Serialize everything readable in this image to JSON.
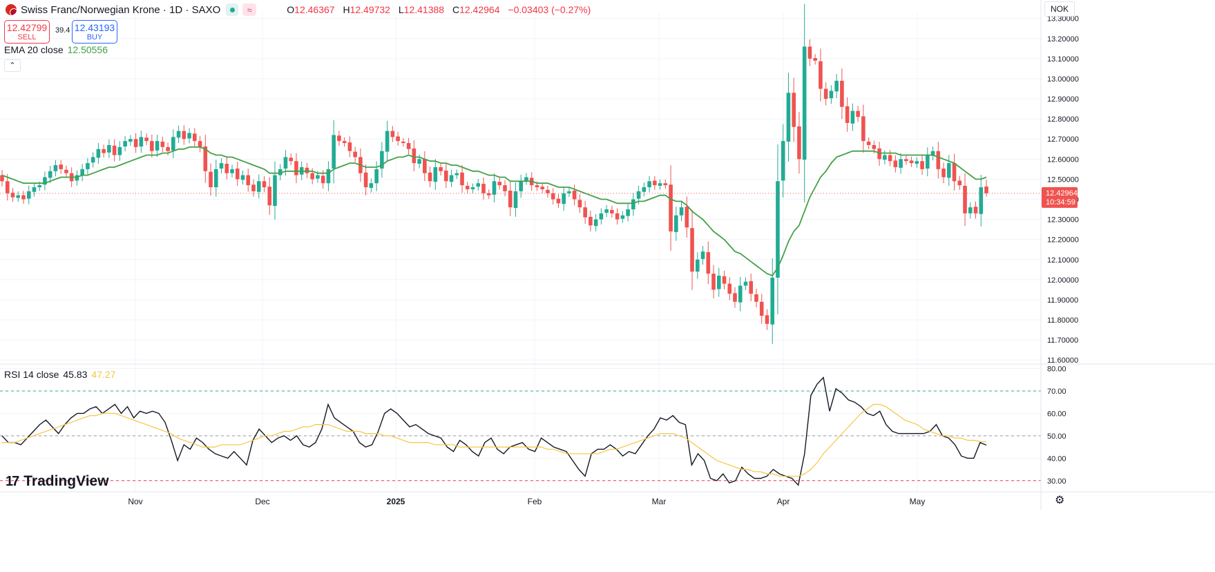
{
  "header": {
    "title": "Swiss Franc/Norwegian Krone · 1D · SAXO",
    "ohlc": [
      {
        "label": "O",
        "value": "12.46367"
      },
      {
        "label": "H",
        "value": "12.49732"
      },
      {
        "label": "L",
        "value": "12.41388"
      },
      {
        "label": "C",
        "value": "12.42964"
      },
      {
        "label": "",
        "value": "−0.03403 (−0.27%)"
      }
    ],
    "wave_icon": "≈"
  },
  "trade": {
    "sell_price": "12.42799",
    "sell_label": "SELL",
    "spread": "39.4",
    "buy_price": "12.43193",
    "buy_label": "BUY"
  },
  "indicators": {
    "ema_label": "EMA 20 close",
    "ema_value": "12.50556",
    "rsi_label": "RSI 14 close",
    "rsi_value": "45.83",
    "rsi_ma_value": "47.27"
  },
  "currency": "NOK",
  "current_price": {
    "price": "12.42964",
    "countdown": "10:34:59"
  },
  "brand": "TradingView",
  "colors": {
    "up": "#22ab94",
    "down": "#ef5350",
    "ema": "#43a047",
    "rsi": "#131722",
    "rsi_ma": "#f5c542",
    "grid": "#f0f3fa"
  },
  "chart_data": [
    {
      "type": "candlestick",
      "title": "Swiss Franc/Norwegian Krone · 1D · SAXO",
      "x_tick_labels": [
        "Nov",
        "Dec",
        "2025",
        "Feb",
        "Mar",
        "Apr",
        "May"
      ],
      "y_tick_labels": [
        "13.30000",
        "13.20000",
        "13.10000",
        "13.00000",
        "12.90000",
        "12.80000",
        "12.70000",
        "12.60000",
        "12.50000",
        "12.40000",
        "12.30000",
        "12.20000",
        "12.10000",
        "12.00000",
        "11.90000",
        "11.80000",
        "11.70000",
        "11.60000"
      ],
      "ylim": [
        11.58,
        13.33
      ],
      "grid": true,
      "close": [
        12.49,
        12.43,
        12.41,
        12.42,
        12.4,
        12.44,
        12.46,
        12.47,
        12.51,
        12.54,
        12.57,
        12.55,
        12.53,
        12.49,
        12.52,
        12.55,
        12.58,
        12.61,
        12.65,
        12.63,
        12.67,
        12.62,
        12.66,
        12.69,
        12.7,
        12.66,
        12.71,
        12.69,
        12.64,
        12.69,
        12.66,
        12.64,
        12.71,
        12.74,
        12.7,
        12.73,
        12.69,
        12.66,
        12.54,
        12.46,
        12.55,
        12.58,
        12.53,
        12.55,
        12.5,
        12.52,
        12.47,
        12.44,
        12.49,
        12.46,
        12.37,
        12.52,
        12.55,
        12.61,
        12.59,
        12.52,
        12.56,
        12.53,
        12.5,
        12.52,
        12.48,
        12.55,
        12.72,
        12.69,
        12.68,
        12.64,
        12.61,
        12.53,
        12.46,
        12.48,
        12.55,
        12.64,
        12.74,
        12.71,
        12.69,
        12.68,
        12.65,
        12.58,
        12.6,
        12.53,
        12.49,
        12.56,
        12.54,
        12.49,
        12.52,
        12.53,
        12.47,
        12.45,
        12.46,
        12.48,
        12.43,
        12.42,
        12.49,
        12.47,
        12.44,
        12.36,
        12.44,
        12.49,
        12.51,
        12.47,
        12.46,
        12.45,
        12.43,
        12.4,
        12.38,
        12.43,
        12.44,
        12.4,
        12.36,
        12.31,
        12.27,
        12.3,
        12.33,
        12.35,
        12.33,
        12.3,
        12.32,
        12.35,
        12.4,
        12.44,
        12.46,
        12.49,
        12.47,
        12.48,
        12.47,
        12.24,
        12.32,
        12.36,
        12.26,
        12.04,
        12.1,
        12.14,
        12.03,
        11.95,
        12.02,
        11.98,
        11.93,
        11.89,
        11.97,
        11.99,
        11.93,
        11.89,
        11.82,
        11.78,
        12.01,
        12.49,
        12.69,
        12.93,
        12.76,
        12.6,
        13.16,
        13.1,
        13.09,
        12.95,
        12.9,
        12.94,
        12.99,
        12.86,
        12.78,
        12.84,
        12.81,
        12.69,
        12.67,
        12.65,
        12.6,
        12.62,
        12.59,
        12.56,
        12.6,
        12.59,
        12.58,
        12.59,
        12.55,
        12.62,
        12.64,
        12.55,
        12.51,
        12.58,
        12.49,
        12.47,
        12.33,
        12.36,
        12.33,
        12.46,
        12.43
      ],
      "current_price": 12.42964
    },
    {
      "type": "line",
      "series": [
        {
          "name": "EMA 20 close",
          "values": [
            12.52,
            12.51,
            12.5,
            12.49,
            12.48,
            12.48,
            12.48,
            12.48,
            12.48,
            12.49,
            12.5,
            12.51,
            12.51,
            12.51,
            12.51,
            12.52,
            12.52,
            12.53,
            12.54,
            12.55,
            12.56,
            12.56,
            12.57,
            12.58,
            12.59,
            12.6,
            12.61,
            12.62,
            12.62,
            12.62,
            12.63,
            12.63,
            12.64,
            12.65,
            12.65,
            12.66,
            12.66,
            12.66,
            12.65,
            12.63,
            12.62,
            12.62,
            12.61,
            12.61,
            12.6,
            12.59,
            12.58,
            12.57,
            12.56,
            12.55,
            12.53,
            12.53,
            12.53,
            12.54,
            12.54,
            12.54,
            12.54,
            12.54,
            12.54,
            12.53,
            12.53,
            12.53,
            12.55,
            12.56,
            12.57,
            12.58,
            12.58,
            12.57,
            12.56,
            12.56,
            12.56,
            12.57,
            12.59,
            12.6,
            12.61,
            12.61,
            12.62,
            12.61,
            12.61,
            12.6,
            12.59,
            12.59,
            12.58,
            12.58,
            12.57,
            12.57,
            12.56,
            12.55,
            12.54,
            12.54,
            12.53,
            12.52,
            12.52,
            12.51,
            12.51,
            12.49,
            12.49,
            12.49,
            12.49,
            12.49,
            12.48,
            12.48,
            12.48,
            12.47,
            12.46,
            12.46,
            12.46,
            12.45,
            12.44,
            12.43,
            12.42,
            12.41,
            12.4,
            12.4,
            12.39,
            12.38,
            12.38,
            12.38,
            12.38,
            12.39,
            12.39,
            12.4,
            12.41,
            12.42,
            12.42,
            12.4,
            12.39,
            12.39,
            12.37,
            12.34,
            12.32,
            12.3,
            12.27,
            12.24,
            12.22,
            12.2,
            12.17,
            12.14,
            12.13,
            12.11,
            12.09,
            12.07,
            12.05,
            12.03,
            12.02,
            12.06,
            12.12,
            12.19,
            12.24,
            12.27,
            12.34,
            12.41,
            12.46,
            12.51,
            12.54,
            12.58,
            12.61,
            12.62,
            12.63,
            12.64,
            12.64,
            12.64,
            12.64,
            12.64,
            12.63,
            12.63,
            12.63,
            12.63,
            12.62,
            12.62,
            12.62,
            12.62,
            12.62,
            12.62,
            12.62,
            12.61,
            12.6,
            12.59,
            12.58,
            12.56,
            12.54,
            12.52,
            12.5,
            12.5,
            12.51
          ]
        }
      ]
    },
    {
      "type": "line",
      "title": "RSI 14 close",
      "y_tick_labels": [
        "80.00",
        "70.00",
        "60.00",
        "50.00",
        "40.00",
        "30.00"
      ],
      "ylim": [
        25,
        82
      ],
      "levels": [
        70,
        50,
        30
      ],
      "series": [
        {
          "name": "RSI 14 close",
          "values": [
            50,
            47,
            47,
            46,
            49,
            52,
            55,
            57,
            54,
            51,
            55,
            58,
            60,
            60,
            62,
            63,
            60,
            62,
            64,
            60,
            63,
            58,
            61,
            60,
            61,
            60,
            56,
            48,
            39,
            46,
            44,
            49,
            47,
            44,
            42,
            41,
            40,
            43,
            40,
            37,
            48,
            53,
            50,
            47,
            49,
            50,
            48,
            50,
            46,
            45,
            47,
            53,
            64,
            58,
            56,
            54,
            52,
            47,
            45,
            46,
            52,
            60,
            62,
            60,
            57,
            54,
            55,
            53,
            51,
            50,
            49,
            45,
            43,
            48,
            46,
            43,
            41,
            47,
            49,
            44,
            42,
            45,
            46,
            47,
            44,
            43,
            49,
            47,
            45,
            44,
            43,
            39,
            35,
            32,
            42,
            44,
            44,
            46,
            44,
            41,
            43,
            42,
            46,
            50,
            53,
            58,
            57,
            59,
            56,
            55,
            37,
            42,
            39,
            31,
            30,
            33,
            29,
            30,
            36,
            33,
            31,
            31,
            32,
            35,
            33,
            32,
            31,
            28,
            42,
            68,
            73,
            76,
            61,
            71,
            69,
            66,
            65,
            63,
            60,
            59,
            61,
            55,
            52,
            51,
            51,
            51,
            51,
            51,
            52,
            55,
            50,
            49,
            46,
            41,
            40,
            40,
            47,
            45.83
          ]
        },
        {
          "name": "RSI MA",
          "values": [
            47,
            47,
            47,
            48,
            49,
            50,
            51,
            52,
            53,
            54,
            55,
            56,
            57,
            58,
            59,
            59,
            60,
            60,
            60,
            59,
            58,
            57,
            56,
            55,
            54,
            53,
            52,
            51,
            49,
            48,
            47,
            46,
            45,
            45,
            45,
            46,
            46,
            46,
            46,
            47,
            48,
            49,
            50,
            50,
            51,
            52,
            52,
            53,
            54,
            54,
            55,
            55,
            55,
            54,
            53,
            52,
            52,
            52,
            51,
            51,
            51,
            50,
            50,
            49,
            48,
            47,
            47,
            47,
            47,
            46,
            46,
            46,
            46,
            45,
            45,
            45,
            45,
            45,
            45,
            45,
            45,
            45,
            45,
            45,
            45,
            45,
            45,
            44,
            44,
            43,
            42,
            42,
            42,
            42,
            42,
            42,
            43,
            44,
            44,
            45,
            46,
            47,
            48,
            49,
            50,
            51,
            51,
            51,
            50,
            49,
            47,
            45,
            43,
            41,
            39,
            38,
            37,
            36,
            35,
            35,
            34,
            34,
            33,
            33,
            32,
            32,
            32,
            32,
            33,
            35,
            38,
            42,
            45,
            48,
            51,
            54,
            57,
            60,
            62,
            64,
            64,
            63,
            61,
            59,
            57,
            56,
            55,
            53,
            52,
            51,
            50,
            50,
            49,
            49,
            48,
            48,
            47.5,
            47.27
          ]
        }
      ]
    }
  ]
}
